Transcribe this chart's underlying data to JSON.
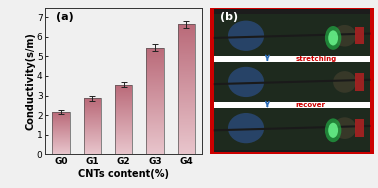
{
  "categories": [
    "G0",
    "G1",
    "G2",
    "G3",
    "G4"
  ],
  "values": [
    2.15,
    2.85,
    3.55,
    5.45,
    6.65
  ],
  "errors": [
    0.1,
    0.12,
    0.12,
    0.18,
    0.18
  ],
  "bar_color_top": "#c97a8a",
  "bar_color_bottom": "#e8c5cc",
  "bar_edge_color": "#555555",
  "bar_width": 0.55,
  "ylim": [
    0,
    7.5
  ],
  "yticks": [
    0,
    1,
    2,
    3,
    4,
    5,
    6,
    7
  ],
  "ylabel": "Conductivity(s/m)",
  "xlabel": "CNTs content(%)",
  "label_a": "(a)",
  "label_b": "(b)",
  "axis_fontsize": 7,
  "tick_fontsize": 6.5,
  "background_color": "#f0f0f0",
  "stretching_text": "stretching",
  "recover_text": "recover",
  "arrow_color": "#2b6cb8",
  "text_color_red": "#cc0000",
  "panel_b_border_color": "#cc0000",
  "separator_color": "#ffffff",
  "dark_bg": "#1c1c1c",
  "photo_bg": "#2d2d2d"
}
